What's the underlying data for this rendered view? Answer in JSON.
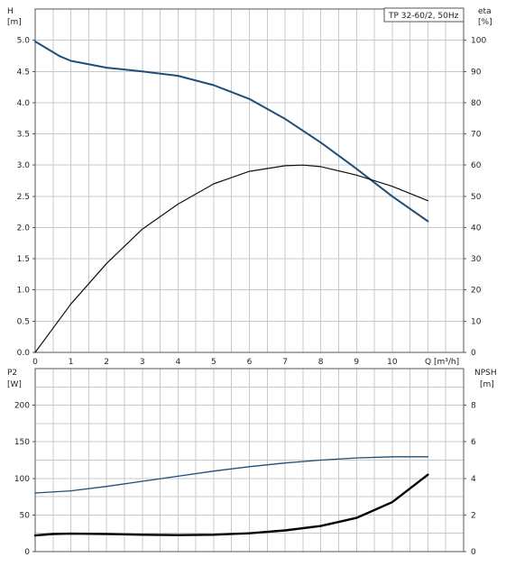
{
  "chart_data": [
    {
      "type": "line",
      "legend_box": "TP 32-60/2, 50Hz",
      "left_axis": {
        "label_line1": "H",
        "label_line2": "[m]",
        "ylim": [
          0,
          5.5
        ],
        "ticks": [
          "0.0",
          "0.5",
          "1.0",
          "1.5",
          "2.0",
          "2.5",
          "3.0",
          "3.5",
          "4.0",
          "4.5",
          "5.0"
        ]
      },
      "right_axis": {
        "label_line1": "eta",
        "label_line2": "[%]",
        "ylim": [
          0,
          110
        ],
        "ticks": [
          "0",
          "10",
          "20",
          "30",
          "40",
          "50",
          "60",
          "70",
          "80",
          "90",
          "100"
        ]
      },
      "x_axis": {
        "label": "Q [m³/h]",
        "xlim": [
          0,
          12
        ],
        "ticks": [
          "0",
          "1",
          "2",
          "3",
          "4",
          "5",
          "6",
          "7",
          "8",
          "9",
          "10"
        ]
      },
      "series": [
        {
          "axis": "left",
          "color": "#1f4e79",
          "x": [
            0,
            0.7,
            1,
            2,
            3,
            4,
            5,
            6,
            7,
            8,
            9,
            10,
            11
          ],
          "y": [
            4.98,
            4.74,
            4.67,
            4.56,
            4.5,
            4.43,
            4.28,
            4.06,
            3.74,
            3.36,
            2.94,
            2.5,
            2.1
          ]
        },
        {
          "axis": "right",
          "color": "#111111",
          "x": [
            0,
            1,
            2,
            3,
            4,
            5,
            6,
            7,
            7.5,
            8,
            9,
            10,
            11
          ],
          "y": [
            0,
            15.5,
            28.5,
            39.5,
            47.5,
            54,
            58,
            59.8,
            60,
            59.5,
            56.8,
            53.2,
            48.6
          ]
        }
      ]
    },
    {
      "type": "line",
      "left_axis": {
        "label_line1": "P2",
        "label_line2": "[W]",
        "ylim": [
          0,
          250
        ],
        "ticks": [
          "0",
          "50",
          "100",
          "150",
          "200"
        ]
      },
      "right_axis": {
        "label_line1": "NPSH",
        "label_line2": "[m]",
        "ylim": [
          0,
          10
        ],
        "ticks": [
          "0",
          "2",
          "4",
          "6",
          "8"
        ]
      },
      "x_axis": {
        "xlim": [
          0,
          12
        ]
      },
      "series": [
        {
          "axis": "left",
          "color": "#1f4e79",
          "x": [
            0,
            1,
            2,
            3,
            4,
            5,
            6,
            7,
            8,
            9,
            10,
            11
          ],
          "y": [
            80,
            83,
            89,
            96,
            103,
            110,
            116,
            121,
            125,
            128,
            129.5,
            129.5
          ]
        },
        {
          "axis": "right",
          "color": "#000000",
          "x": [
            0,
            0.5,
            1,
            2,
            3,
            4,
            5,
            6,
            7,
            8,
            9,
            10,
            11
          ],
          "y": [
            0.88,
            0.96,
            0.98,
            0.96,
            0.92,
            0.9,
            0.92,
            1.0,
            1.16,
            1.4,
            1.84,
            2.7,
            4.2
          ]
        }
      ]
    }
  ]
}
